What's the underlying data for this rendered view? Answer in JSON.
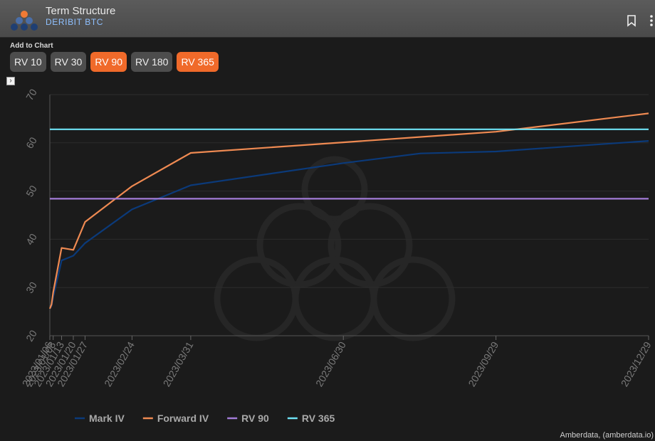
{
  "header": {
    "title": "Term Structure",
    "subtitle": "DERIBIT BTC"
  },
  "toolbar": {
    "add_label": "Add to Chart",
    "buttons": [
      {
        "label": "RV 10",
        "active": false
      },
      {
        "label": "RV 30",
        "active": false
      },
      {
        "label": "RV 90",
        "active": true
      },
      {
        "label": "RV 180",
        "active": false
      },
      {
        "label": "RV 365",
        "active": true
      }
    ]
  },
  "credit": "Amberdata, (amberdata.io)",
  "chart_data": {
    "type": "line",
    "x_tick_labels": [
      "2023/01/06",
      "2023/01/08",
      "2023/01/13",
      "2023/01/20",
      "2023/01/27",
      "2023/02/24",
      "2023/03/31",
      "2023/06/30",
      "2023/09/29",
      "2023/12/29"
    ],
    "ylim": [
      20,
      70
    ],
    "y_ticks": [
      20,
      30,
      40,
      50,
      60,
      70
    ],
    "legend_position": "bottom",
    "series": [
      {
        "name": "Mark IV",
        "color": "#0b3a7a",
        "points": [
          [
            "2023/01/06",
            25.6
          ],
          [
            "2023/01/07",
            26.2
          ],
          [
            "2023/01/08",
            28.0
          ],
          [
            "2023/01/13",
            35.6
          ],
          [
            "2023/01/20",
            36.6
          ],
          [
            "2023/01/27",
            39.2
          ],
          [
            "2023/02/24",
            46.2
          ],
          [
            "2023/03/31",
            51.2
          ],
          [
            "2023/06/30",
            55.8
          ],
          [
            "2023/08/15",
            57.8
          ],
          [
            "2023/09/29",
            58.2
          ],
          [
            "2023/12/29",
            60.4
          ]
        ]
      },
      {
        "name": "Forward IV",
        "color": "#ef8a52",
        "points": [
          [
            "2023/01/06",
            25.6
          ],
          [
            "2023/01/07",
            26.5
          ],
          [
            "2023/01/08",
            29.0
          ],
          [
            "2023/01/13",
            38.2
          ],
          [
            "2023/01/20",
            37.8
          ],
          [
            "2023/01/27",
            43.6
          ],
          [
            "2023/02/24",
            51.0
          ],
          [
            "2023/03/31",
            57.9
          ],
          [
            "2023/06/30",
            60.1
          ],
          [
            "2023/09/29",
            62.3
          ],
          [
            "2023/12/29",
            66.1
          ]
        ]
      },
      {
        "name": "RV 90",
        "color": "#a37cd8",
        "points": [
          [
            "2023/01/06",
            48.4
          ],
          [
            "2023/12/29",
            48.4
          ]
        ]
      },
      {
        "name": "RV 365",
        "color": "#6ee3f5",
        "points": [
          [
            "2023/01/06",
            62.8
          ],
          [
            "2023/12/29",
            62.8
          ]
        ]
      }
    ]
  }
}
